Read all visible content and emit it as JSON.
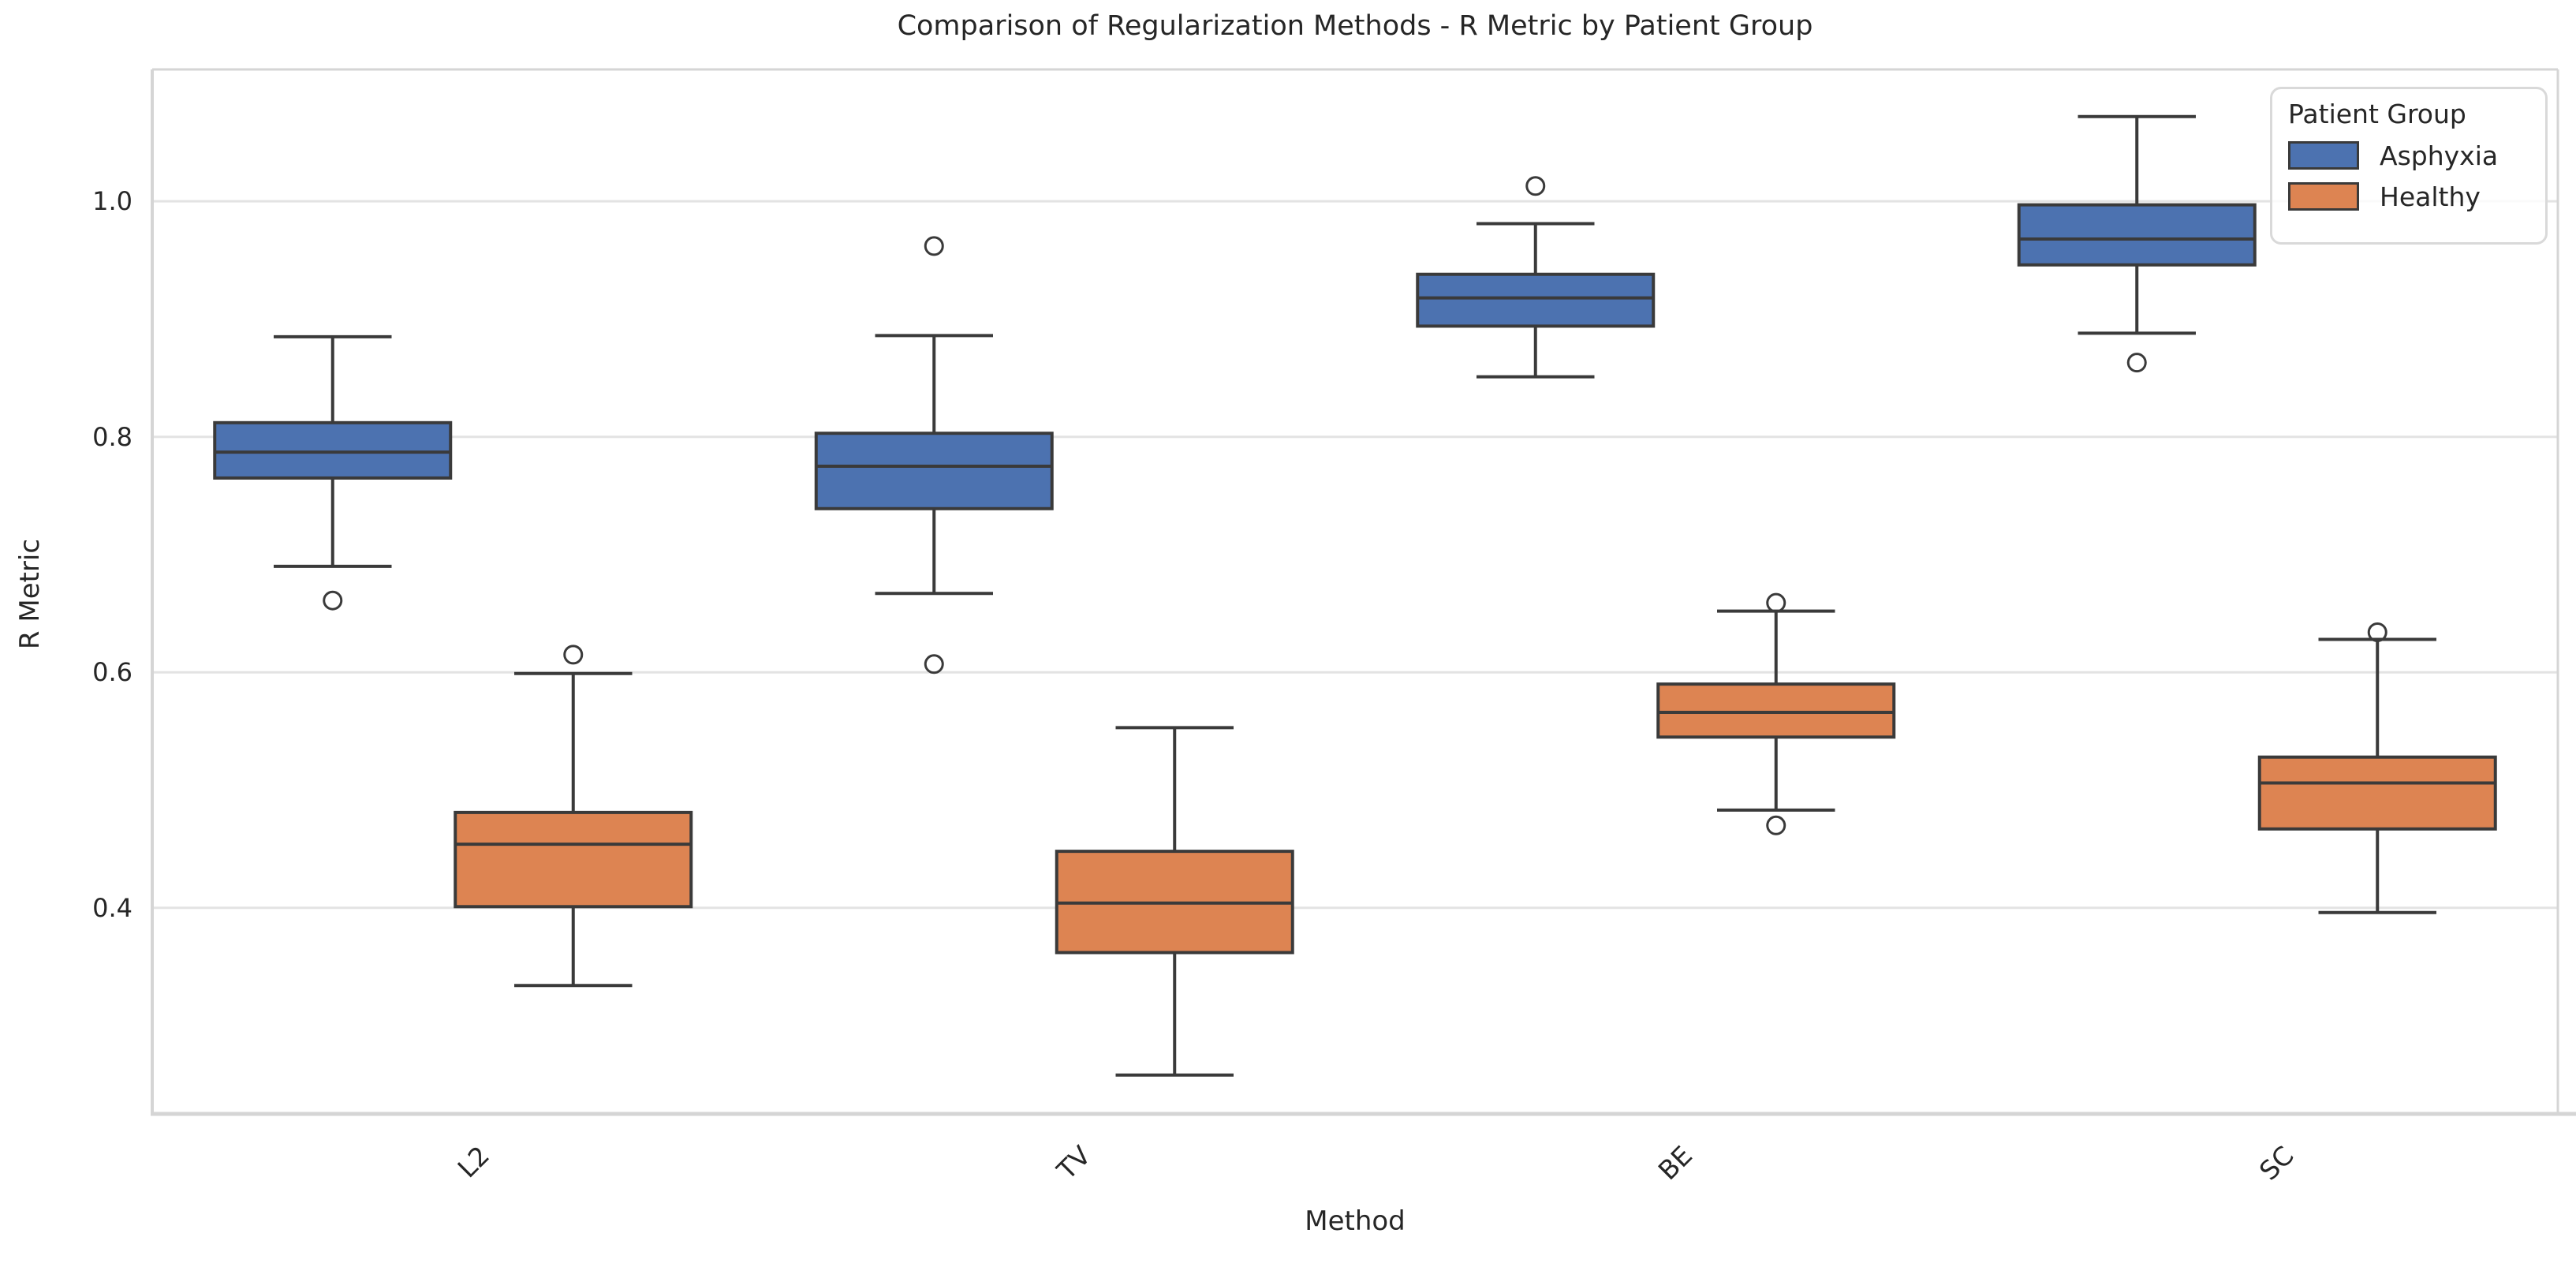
{
  "chart_data": {
    "type": "boxplot",
    "title": "Comparison of Regularization Methods - R Metric by Patient Group",
    "xlabel": "Method",
    "ylabel": "R Metric",
    "categories": [
      "L2",
      "TV",
      "BE",
      "SC"
    ],
    "yticks": [
      0.4,
      0.6,
      0.8,
      1.0
    ],
    "ytick_labels": [
      "0.4",
      "0.6",
      "0.8",
      "1.0"
    ],
    "ylim": [
      0.225,
      1.112
    ],
    "grid": "horizontal",
    "legend": {
      "title": "Patient Group",
      "position": "upper-right",
      "entries": [
        {
          "label": "Asphyxia",
          "color": "#4C72B0"
        },
        {
          "label": "Healthy",
          "color": "#DD8452"
        }
      ]
    },
    "series": [
      {
        "name": "Asphyxia",
        "color": "#4C72B0",
        "boxes": [
          {
            "category": "L2",
            "whislo": 0.69,
            "q1": 0.765,
            "med": 0.787,
            "q3": 0.812,
            "whishi": 0.885,
            "outliers": [
              0.661
            ]
          },
          {
            "category": "TV",
            "whislo": 0.667,
            "q1": 0.739,
            "med": 0.775,
            "q3": 0.803,
            "whishi": 0.886,
            "outliers": [
              0.962,
              0.607
            ]
          },
          {
            "category": "BE",
            "whislo": 0.851,
            "q1": 0.894,
            "med": 0.918,
            "q3": 0.938,
            "whishi": 0.981,
            "outliers": [
              1.013
            ]
          },
          {
            "category": "SC",
            "whislo": 0.888,
            "q1": 0.946,
            "med": 0.968,
            "q3": 0.997,
            "whishi": 1.072,
            "outliers": [
              0.863
            ]
          }
        ]
      },
      {
        "name": "Healthy",
        "color": "#DD8452",
        "boxes": [
          {
            "category": "L2",
            "whislo": 0.334,
            "q1": 0.401,
            "med": 0.454,
            "q3": 0.481,
            "whishi": 0.599,
            "outliers": [
              0.615
            ]
          },
          {
            "category": "TV",
            "whislo": 0.258,
            "q1": 0.362,
            "med": 0.404,
            "q3": 0.448,
            "whishi": 0.553,
            "outliers": []
          },
          {
            "category": "BE",
            "whislo": 0.483,
            "q1": 0.545,
            "med": 0.566,
            "q3": 0.59,
            "whishi": 0.652,
            "outliers": [
              0.659,
              0.47
            ]
          },
          {
            "category": "SC",
            "whislo": 0.396,
            "q1": 0.467,
            "med": 0.506,
            "q3": 0.528,
            "whishi": 0.628,
            "outliers": [
              0.634
            ]
          }
        ]
      }
    ],
    "colors": {
      "box_edge": "#3A3A3A",
      "grid": "#E3E3E3",
      "spine": "#D5D5D5",
      "text": "#262626",
      "background": "#FFFFFF"
    }
  }
}
